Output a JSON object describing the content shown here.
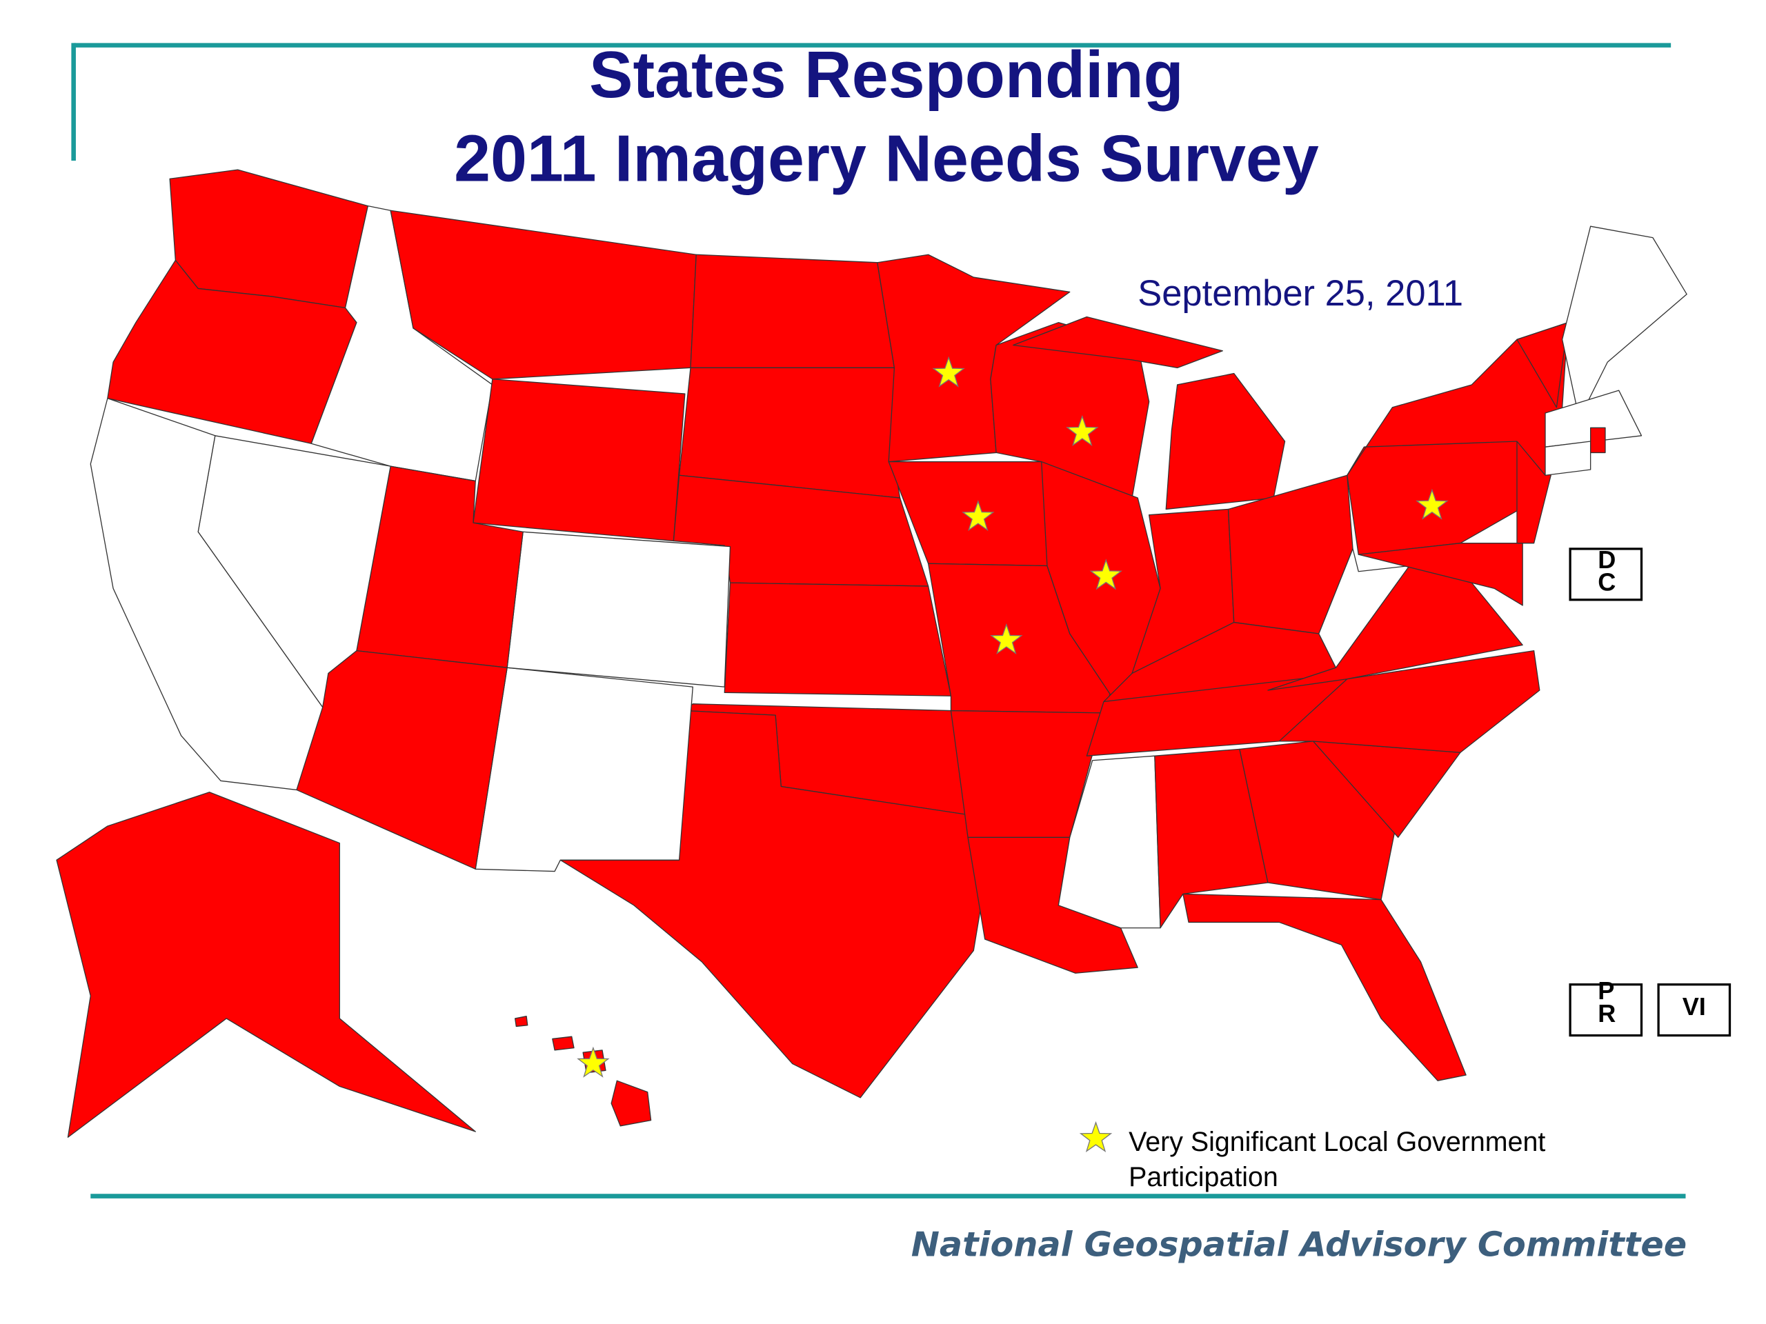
{
  "header": {
    "title_lines": [
      "States Responding",
      "2011 Imagery Needs Survey"
    ],
    "date": "September 25, 2011"
  },
  "territories": [
    "DC",
    "PR",
    "VI"
  ],
  "legend": {
    "label": "Very Significant Local Government Participation"
  },
  "footer": "National Geospatial Advisory Committee"
}
